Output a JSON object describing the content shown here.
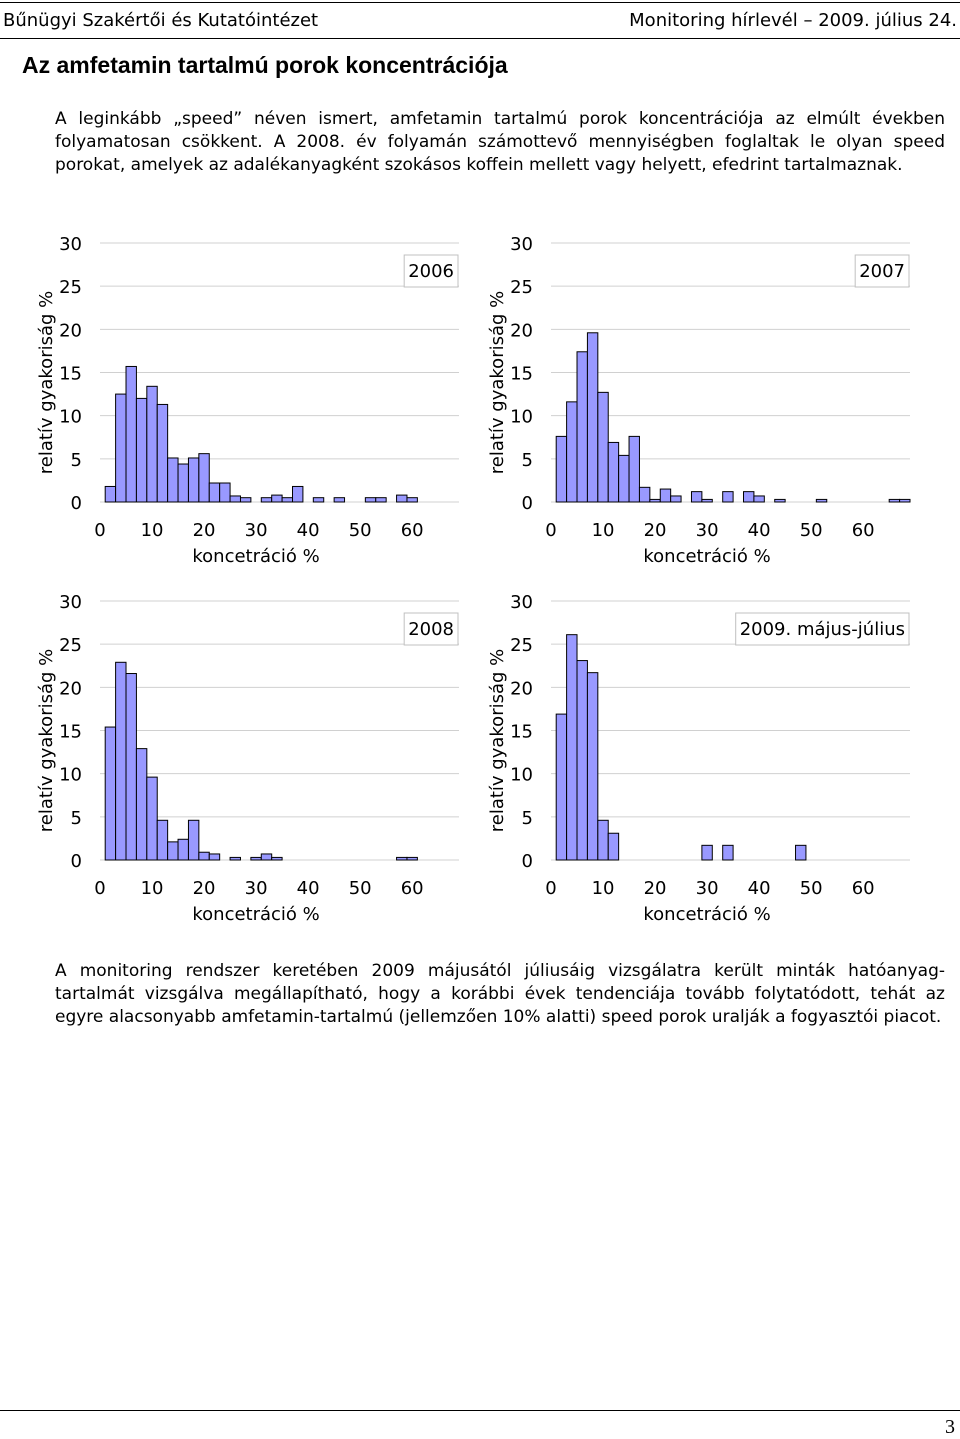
{
  "header": {
    "left": "Bűnügyi Szakértői és Kutatóintézet",
    "right": "Monitoring hírlevél – 2009. július 24."
  },
  "title": "Az amfetamin tartalmú porok koncentrációja",
  "paragraphs": [
    "A leginkább „speed” néven ismert, amfetamin tartalmú porok koncentrációja az elmúlt években folyamatosan csökkent. A 2008. év folyamán számottevő mennyiségben foglaltak le olyan speed porokat, amelyek az adalékanyagként szokásos koffein mellett vagy helyett, efedrint tartalmaznak.",
    "A monitoring rendszer keretében 2009 májusától júliusáig vizsgálatra került minták hatóanyag-tartalmát vizsgálva megállapítható, hogy a korábbi évek tendenciája tovább folytatódott, tehát az egyre alacsonyabb amfetamin-tartalmú (jellemzően 10% alatti) speed porok uralják a fogyasztói piacot."
  ],
  "chart_data": [
    {
      "type": "histogram",
      "legend": "2006",
      "xlabel": "koncetráció %",
      "ylabel": "relatív gyakoriság %",
      "color": "#9999ff",
      "bins": [
        1,
        3,
        5,
        7,
        9,
        11,
        13,
        15,
        17,
        19,
        21,
        23,
        25,
        27,
        29,
        31,
        33,
        35,
        37,
        39,
        41,
        43,
        45,
        47,
        49,
        51,
        53,
        55,
        57,
        59,
        61,
        63,
        65,
        67,
        69
      ],
      "values": [
        1.8,
        12.5,
        15.7,
        12,
        13.4,
        11.3,
        5.1,
        4.4,
        5.1,
        5.6,
        2.2,
        2.2,
        0.7,
        0.5,
        0,
        0.5,
        0.8,
        0.5,
        1.8,
        0,
        0.5,
        0,
        0.5,
        0,
        0,
        0.5,
        0.5,
        0,
        0.8,
        0.5,
        0,
        0,
        0,
        0
      ],
      "xlim": [
        0,
        69
      ],
      "ylim": [
        0,
        30
      ],
      "xticks": [
        0,
        10,
        20,
        30,
        40,
        50,
        60
      ],
      "yticks": [
        0,
        5,
        10,
        15,
        20,
        25,
        30
      ],
      "grid": true
    },
    {
      "type": "histogram",
      "legend": "2007",
      "xlabel": "koncetráció %",
      "ylabel": "relatív gyakoriság %",
      "color": "#9999ff",
      "bins": [
        1,
        3,
        5,
        7,
        9,
        11,
        13,
        15,
        17,
        19,
        21,
        23,
        25,
        27,
        29,
        31,
        33,
        35,
        37,
        39,
        41,
        43,
        45,
        47,
        49,
        51,
        53,
        55,
        57,
        59,
        61,
        63,
        65,
        67,
        69
      ],
      "values": [
        7.6,
        11.6,
        17.4,
        19.6,
        12.7,
        6.9,
        5.4,
        7.6,
        1.7,
        0.3,
        1.5,
        0.7,
        0,
        1.2,
        0.3,
        0,
        1.2,
        0,
        1.2,
        0.7,
        0,
        0.3,
        0,
        0,
        0,
        0.3,
        0,
        0,
        0,
        0,
        0,
        0,
        0.3,
        0.3
      ],
      "xlim": [
        0,
        69
      ],
      "ylim": [
        0,
        30
      ],
      "xticks": [
        0,
        10,
        20,
        30,
        40,
        50,
        60
      ],
      "yticks": [
        0,
        5,
        10,
        15,
        20,
        25,
        30
      ],
      "grid": true
    },
    {
      "type": "histogram",
      "legend": "2008",
      "xlabel": "koncetráció %",
      "ylabel": "relatív gyakoriság %",
      "color": "#9999ff",
      "bins": [
        1,
        3,
        5,
        7,
        9,
        11,
        13,
        15,
        17,
        19,
        21,
        23,
        25,
        27,
        29,
        31,
        33,
        35,
        37,
        39,
        41,
        43,
        45,
        47,
        49,
        51,
        53,
        55,
        57,
        59,
        61,
        63,
        65,
        67,
        69
      ],
      "values": [
        15.4,
        22.9,
        21.6,
        12.9,
        9.6,
        4.6,
        2.1,
        2.4,
        4.6,
        0.9,
        0.7,
        0,
        0.3,
        0,
        0.3,
        0.7,
        0.3,
        0,
        0,
        0,
        0,
        0,
        0,
        0,
        0,
        0,
        0,
        0,
        0.3,
        0.3,
        0,
        0,
        0,
        0
      ],
      "xlim": [
        0,
        69
      ],
      "ylim": [
        0,
        30
      ],
      "xticks": [
        0,
        10,
        20,
        30,
        40,
        50,
        60
      ],
      "yticks": [
        0,
        5,
        10,
        15,
        20,
        25,
        30
      ],
      "grid": true
    },
    {
      "type": "histogram",
      "legend": "2009. május-július",
      "xlabel": "koncetráció %",
      "ylabel": "relatív gyakoriság %",
      "color": "#9999ff",
      "bins": [
        1,
        3,
        5,
        7,
        9,
        11,
        13,
        15,
        17,
        19,
        21,
        23,
        25,
        27,
        29,
        31,
        33,
        35,
        37,
        39,
        41,
        43,
        45,
        47,
        49,
        51,
        53,
        55,
        57,
        59,
        61,
        63,
        65,
        67,
        69
      ],
      "values": [
        16.9,
        26.1,
        23.1,
        21.7,
        4.6,
        3.1,
        0,
        0,
        0,
        0,
        0,
        0,
        0,
        0,
        1.7,
        0,
        1.7,
        0,
        0,
        0,
        0,
        0,
        0,
        1.7,
        0,
        0,
        0,
        0,
        0,
        0,
        0,
        0,
        0,
        0
      ],
      "xlim": [
        0,
        69
      ],
      "ylim": [
        0,
        30
      ],
      "xticks": [
        0,
        10,
        20,
        30,
        40,
        50,
        60
      ],
      "yticks": [
        0,
        5,
        10,
        15,
        20,
        25,
        30
      ],
      "grid": true
    }
  ],
  "page_number": "3"
}
